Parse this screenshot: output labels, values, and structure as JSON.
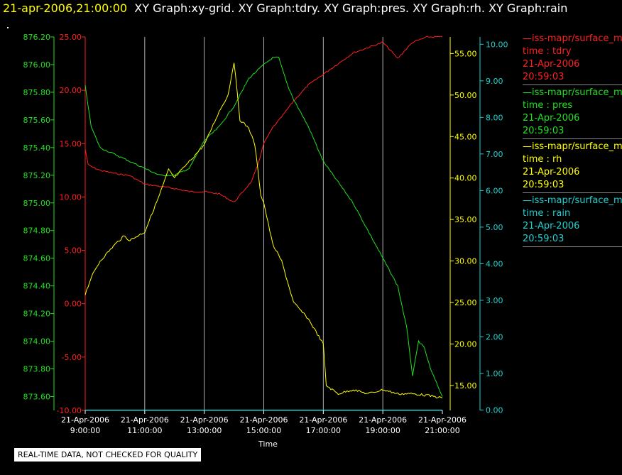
{
  "header": {
    "datetime": "21-apr-2006,21:00:00",
    "graphs": "XY Graph:xy-grid.  XY Graph:tdry.  XY Graph:pres.  XY Graph:rh.  XY Graph:rain"
  },
  "legend": [
    {
      "name": "—iss-mapr/surface_m",
      "field": "time : tdry",
      "date": "21-Apr-2006",
      "time": "20:59:03",
      "color": "#ff2020"
    },
    {
      "name": "—iss-mapr/surface_m",
      "field": "time : pres",
      "date": "21-Apr-2006",
      "time": "20:59:03",
      "color": "#20e020"
    },
    {
      "name": "—iss-mapr/surface_m",
      "field": "time : rh",
      "date": "21-Apr-2006",
      "time": "20:59:03",
      "color": "#ffff00"
    },
    {
      "name": "—iss-mapr/surface_m",
      "field": "time : rain",
      "date": "21-Apr-2006",
      "time": "20:59:03",
      "color": "#20d0d0"
    }
  ],
  "quality_note": "REAL-TIME DATA, NOT CHECKED FOR QUALITY",
  "chart_data": {
    "type": "line",
    "xlabel": "Time",
    "x_ticks": [
      {
        "date": "21-Apr-2006",
        "time": "9:00:00"
      },
      {
        "date": "21-Apr-2006",
        "time": "11:00:00"
      },
      {
        "date": "21-Apr-2006",
        "time": "13:00:00"
      },
      {
        "date": "21-Apr-2006",
        "time": "15:00:00"
      },
      {
        "date": "21-Apr-2006",
        "time": "17:00:00"
      },
      {
        "date": "21-Apr-2006",
        "time": "19:00:00"
      },
      {
        "date": "21-Apr-2006",
        "time": "21:00:00"
      }
    ],
    "xlim_hours": [
      9,
      21
    ],
    "grid": "vertical",
    "axes": {
      "tdry": {
        "color": "#ff2020",
        "lim": [
          -10,
          25
        ],
        "ticks": [
          "-10.00",
          "-5.00",
          "0.00",
          "5.00",
          "10.00",
          "15.00",
          "20.00",
          "25.00"
        ]
      },
      "pres": {
        "color": "#20e020",
        "lim": [
          873.5,
          876.2
        ],
        "ticks": [
          "873.60",
          "873.80",
          "874.00",
          "874.20",
          "874.40",
          "874.60",
          "874.80",
          "875.00",
          "875.20",
          "875.40",
          "875.60",
          "875.80",
          "876.00",
          "876.20"
        ]
      },
      "rh": {
        "color": "#ffff00",
        "lim": [
          12,
          57
        ],
        "ticks": [
          "15.00",
          "20.00",
          "25.00",
          "30.00",
          "35.00",
          "40.00",
          "45.00",
          "50.00",
          "55.00"
        ]
      },
      "rain": {
        "color": "#20d0d0",
        "lim": [
          -0.01,
          10.2
        ],
        "ticks": [
          "0.00",
          "1.00",
          "2.00",
          "3.00",
          "4.00",
          "5.00",
          "6.00",
          "7.00",
          "8.00",
          "9.00",
          "10.00"
        ]
      }
    },
    "series": [
      {
        "name": "tdry",
        "axis": "tdry",
        "color": "#ff2020",
        "x": [
          9.0,
          9.1,
          9.25,
          9.5,
          10.0,
          10.5,
          11.0,
          11.5,
          12.0,
          12.5,
          13.0,
          13.5,
          14.0,
          14.3,
          14.6,
          14.8,
          15.0,
          15.3,
          15.6,
          16.0,
          16.5,
          17.0,
          17.5,
          18.0,
          18.5,
          19.0,
          19.5,
          20.0,
          20.5,
          21.0
        ],
        "y": [
          14.5,
          13.0,
          12.8,
          12.5,
          12.2,
          12.0,
          11.2,
          11.0,
          10.8,
          10.5,
          10.5,
          10.3,
          9.5,
          10.5,
          11.5,
          13.0,
          15.0,
          16.5,
          17.5,
          19.0,
          20.5,
          21.5,
          22.5,
          23.5,
          24.0,
          24.5,
          23.0,
          24.5,
          25.0,
          25.0
        ]
      },
      {
        "name": "pres",
        "axis": "pres",
        "color": "#20e020",
        "x": [
          9.0,
          9.2,
          9.5,
          10.0,
          10.5,
          11.0,
          11.5,
          12.0,
          12.5,
          13.0,
          13.5,
          14.0,
          14.5,
          15.0,
          15.3,
          15.5,
          15.8,
          16.0,
          16.5,
          17.0,
          17.5,
          18.0,
          18.5,
          19.0,
          19.5,
          19.8,
          20.0,
          20.2,
          20.4,
          20.6,
          20.8,
          21.0
        ],
        "y": [
          875.85,
          875.55,
          875.4,
          875.35,
          875.3,
          875.25,
          875.2,
          875.2,
          875.25,
          875.45,
          875.55,
          875.7,
          875.9,
          876.0,
          876.05,
          876.05,
          875.85,
          875.75,
          875.55,
          875.3,
          875.15,
          875.0,
          874.8,
          874.6,
          874.4,
          874.1,
          873.75,
          874.0,
          873.95,
          873.8,
          873.7,
          873.6
        ]
      },
      {
        "name": "rh",
        "axis": "rh",
        "color": "#ffff00",
        "x": [
          9.0,
          9.2,
          9.5,
          10.0,
          10.3,
          10.5,
          11.0,
          11.5,
          11.8,
          12.0,
          12.5,
          13.0,
          13.5,
          13.8,
          14.0,
          14.2,
          14.5,
          14.7,
          14.9,
          15.0,
          15.3,
          15.6,
          16.0,
          16.5,
          17.0,
          17.1,
          17.5,
          18.0,
          18.5,
          19.0,
          19.5,
          20.0,
          20.5,
          21.0
        ],
        "y": [
          26.0,
          28.0,
          30.0,
          32.0,
          33.0,
          32.5,
          33.5,
          38.0,
          41.0,
          40.0,
          42.0,
          44.0,
          48.0,
          50.0,
          54.0,
          47.0,
          46.0,
          44.0,
          38.0,
          37.0,
          32.0,
          30.0,
          25.0,
          23.0,
          20.0,
          15.0,
          14.0,
          14.5,
          14.0,
          14.5,
          14.0,
          14.0,
          13.8,
          13.5
        ]
      },
      {
        "name": "rain",
        "axis": "rain",
        "color": "#20d0d0",
        "x": [
          9.0,
          21.0
        ],
        "y": [
          0.0,
          0.0
        ]
      }
    ]
  }
}
